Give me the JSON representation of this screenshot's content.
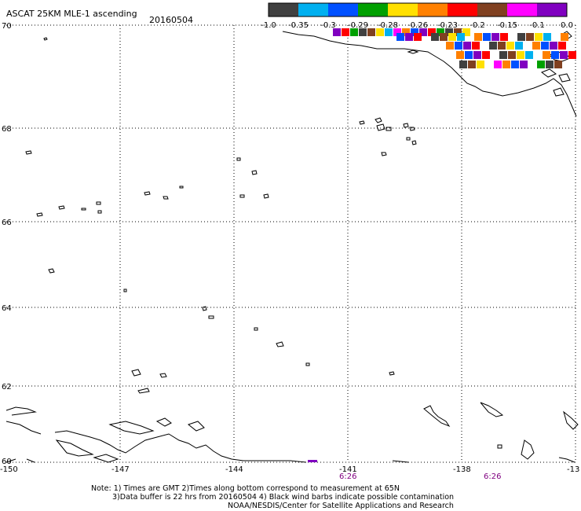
{
  "title": "ASCAT 25KM MLE-1 ascending",
  "date": "20160504",
  "colorbar": {
    "colors": [
      "#404040",
      "#00b0f0",
      "#0050ff",
      "#00a000",
      "#ffe000",
      "#ff8000",
      "#ff0000",
      "#804020",
      "#ff00ff",
      "#8000c0"
    ],
    "labels": [
      "-1.0",
      "-0.35",
      "-0.3",
      "-0.29",
      "-0.28",
      "-0.26",
      "-0.23",
      "-0.2",
      "-0.15",
      "-0.1",
      "0.0"
    ]
  },
  "map": {
    "lat_labels": [
      "70",
      "68",
      "66",
      "64",
      "62",
      "60"
    ],
    "lon_labels": [
      "-150",
      "-147",
      "-144",
      "-141",
      "-138",
      "-13"
    ],
    "time_labels": [
      "6:26",
      "6:26"
    ]
  },
  "notes": {
    "line1": "Note: 1) Times are GMT 2)Times along bottom correspond to measurement at 65N",
    "line2": "3)Data buffer is 22 hrs from 20160504 4) Black wind barbs indicate possible contamination",
    "line3": "NOAA/NESDIS/Center for Satellite Applications and Research"
  }
}
